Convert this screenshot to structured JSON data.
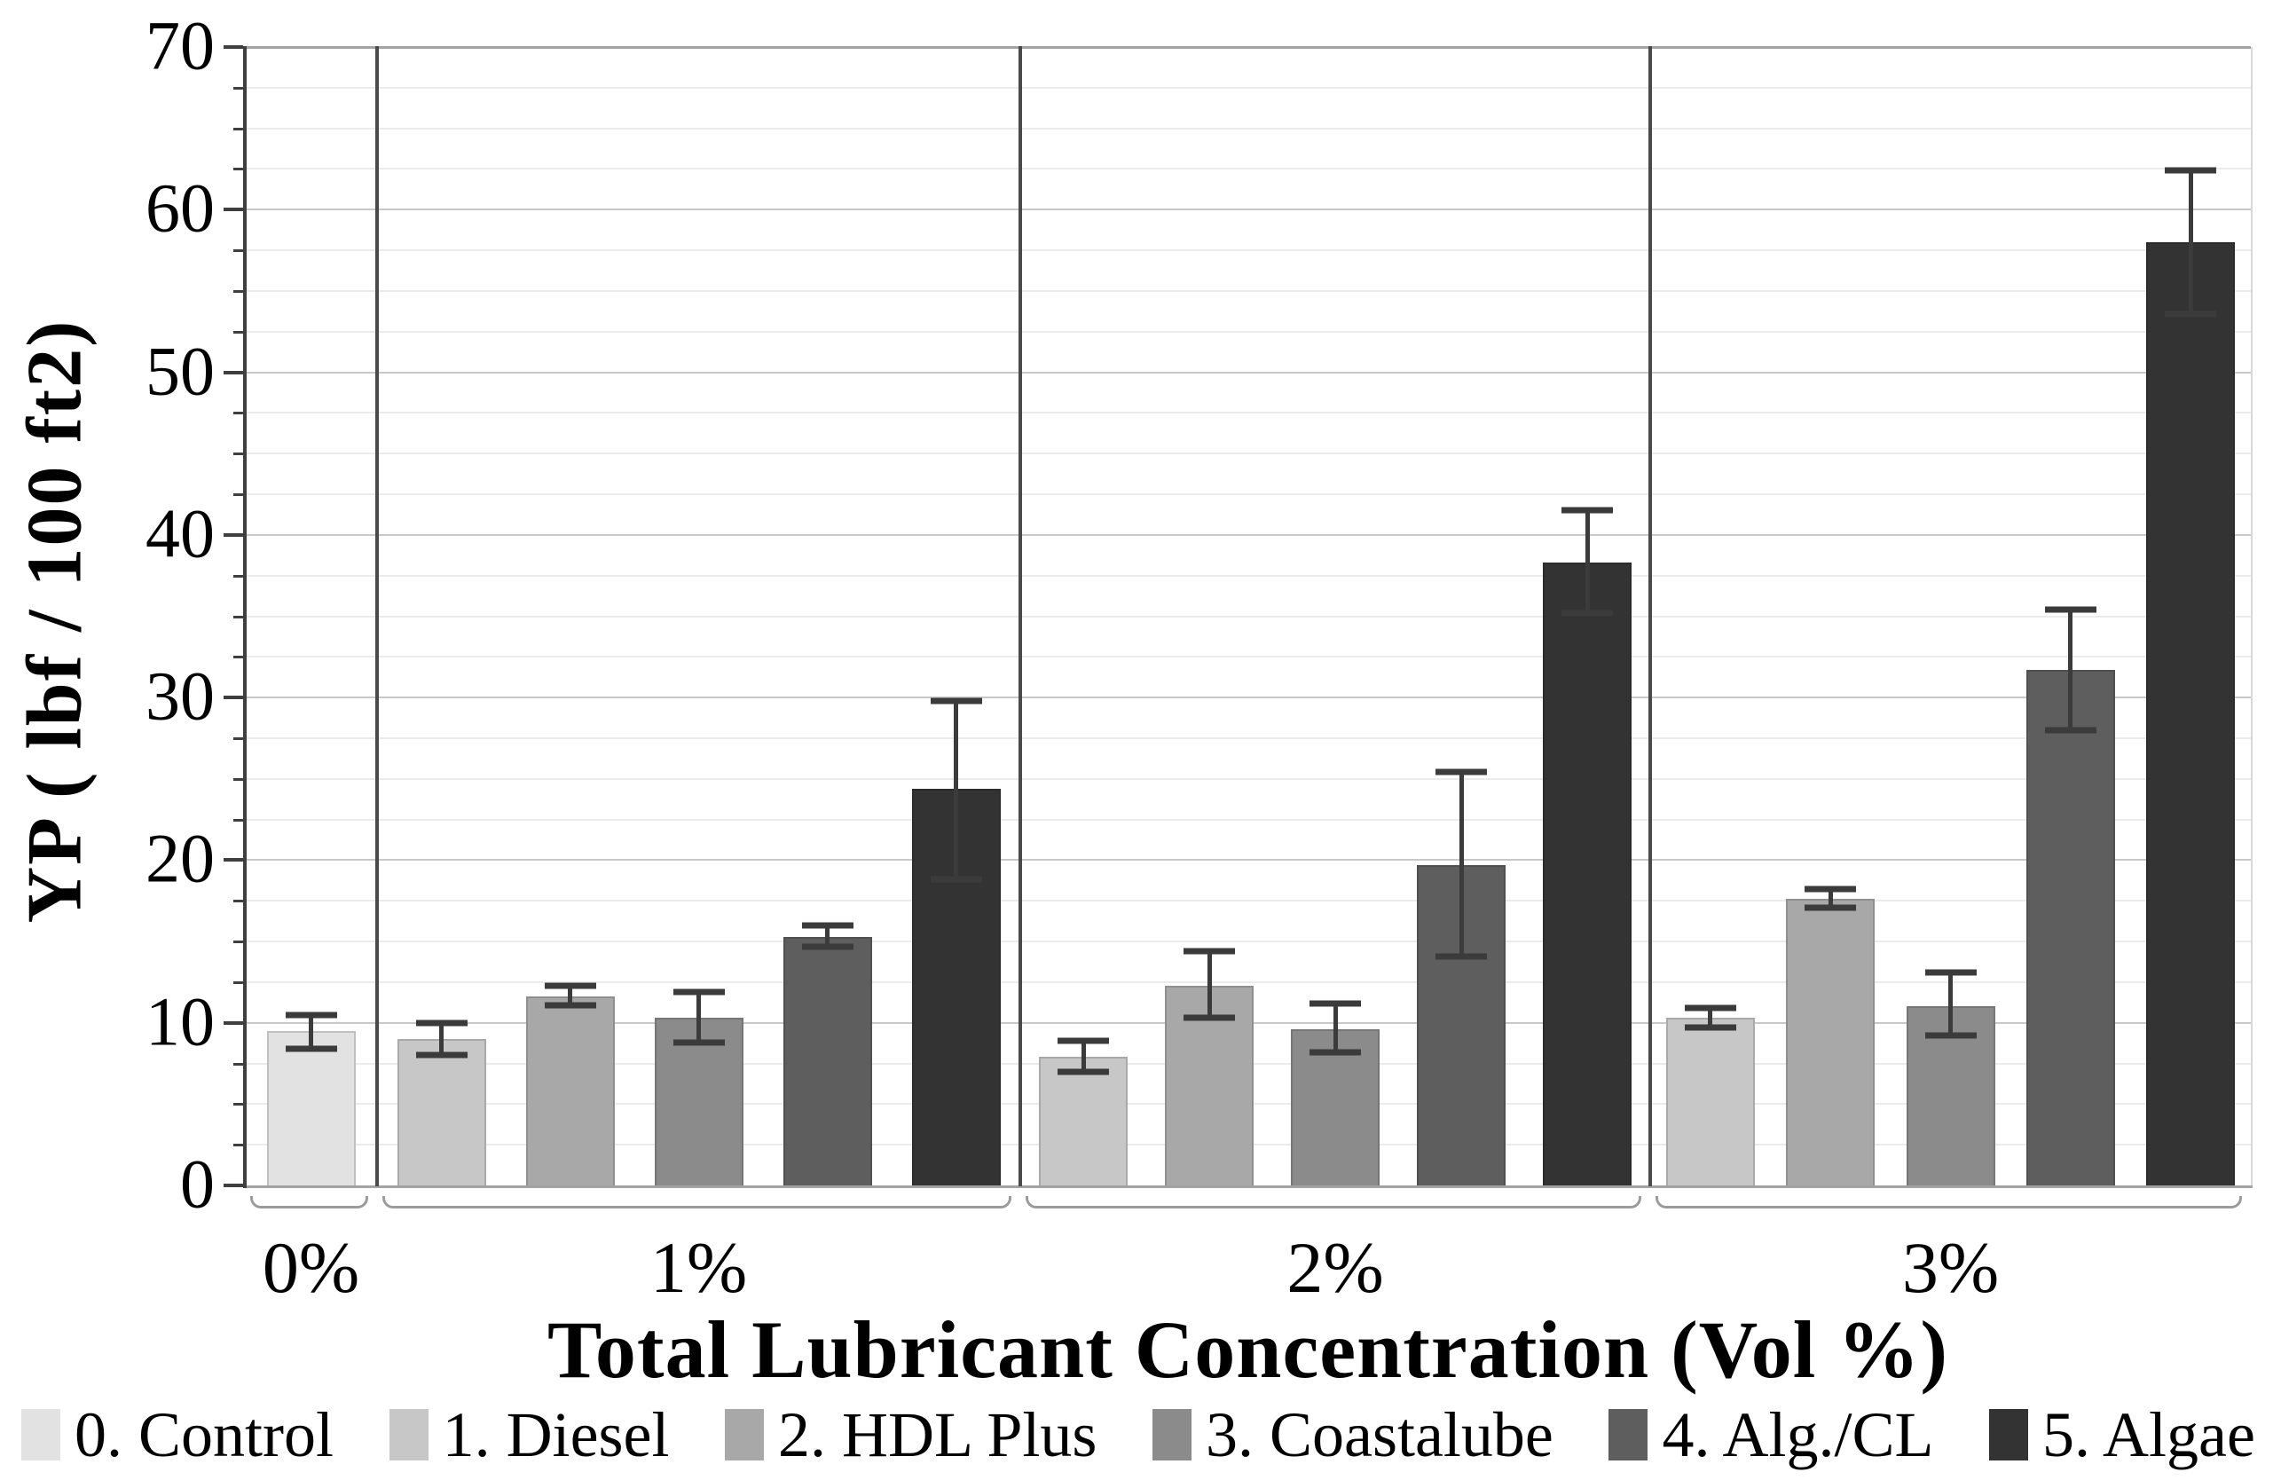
{
  "chart_data": {
    "type": "bar",
    "title": "",
    "xlabel": "Total Lubricant Concentration (Vol %)",
    "ylabel": "YP ( lbf / 100 ft2)",
    "ylim": [
      0,
      70
    ],
    "ytick_step": 10,
    "minor_grid_step": 2.5,
    "grid": true,
    "error_bars": true,
    "legend_position": "bottom",
    "ytick_labels": [
      "0",
      "10",
      "20",
      "30",
      "40",
      "50",
      "60",
      "70"
    ],
    "group_axis_labels": [
      "0%",
      "1%",
      "2%",
      "3%"
    ],
    "series_legend": [
      {
        "label": "0. Control",
        "color": "#e2e2e2"
      },
      {
        "label": "1. Diesel",
        "color": "#c7c7c7"
      },
      {
        "label": "2. HDL Plus",
        "color": "#a8a8a8"
      },
      {
        "label": "3. Coastalube",
        "color": "#8b8b8b"
      },
      {
        "label": "4. Alg./CL",
        "color": "#5e5e5e"
      },
      {
        "label": "5. Algae",
        "color": "#333333"
      }
    ],
    "groups": [
      {
        "label": "0%",
        "bars": [
          {
            "series": "0. Control",
            "value": 9.5,
            "err_lo": 8.4,
            "err_hi": 10.5
          }
        ]
      },
      {
        "label": "1%",
        "bars": [
          {
            "series": "1. Diesel",
            "value": 9.0,
            "err_lo": 8.0,
            "err_hi": 10.0
          },
          {
            "series": "2. HDL Plus",
            "value": 11.6,
            "err_lo": 11.1,
            "err_hi": 12.3
          },
          {
            "series": "3. Coastalube",
            "value": 10.3,
            "err_lo": 8.8,
            "err_hi": 11.9
          },
          {
            "series": "4. Alg./CL",
            "value": 15.3,
            "err_lo": 14.7,
            "err_hi": 16.0
          },
          {
            "series": "5. Algae",
            "value": 24.4,
            "err_lo": 18.8,
            "err_hi": 29.8
          }
        ]
      },
      {
        "label": "2%",
        "bars": [
          {
            "series": "1. Diesel",
            "value": 7.9,
            "err_lo": 7.0,
            "err_hi": 8.9
          },
          {
            "series": "2. HDL Plus",
            "value": 12.3,
            "err_lo": 10.3,
            "err_hi": 14.4
          },
          {
            "series": "3. Coastalube",
            "value": 9.6,
            "err_lo": 8.2,
            "err_hi": 11.2
          },
          {
            "series": "4. Alg./CL",
            "value": 19.7,
            "err_lo": 14.1,
            "err_hi": 25.4
          },
          {
            "series": "5. Algae",
            "value": 38.3,
            "err_lo": 35.2,
            "err_hi": 41.5
          }
        ]
      },
      {
        "label": "3%",
        "bars": [
          {
            "series": "1. Diesel",
            "value": 10.3,
            "err_lo": 9.7,
            "err_hi": 10.9
          },
          {
            "series": "2. HDL Plus",
            "value": 17.6,
            "err_lo": 17.1,
            "err_hi": 18.2
          },
          {
            "series": "3. Coastalube",
            "value": 11.0,
            "err_lo": 9.2,
            "err_hi": 13.1
          },
          {
            "series": "4. Alg./CL",
            "value": 31.7,
            "err_lo": 28.0,
            "err_hi": 35.4
          },
          {
            "series": "5. Algae",
            "value": 58.0,
            "err_lo": 53.6,
            "err_hi": 62.4
          }
        ]
      }
    ]
  }
}
